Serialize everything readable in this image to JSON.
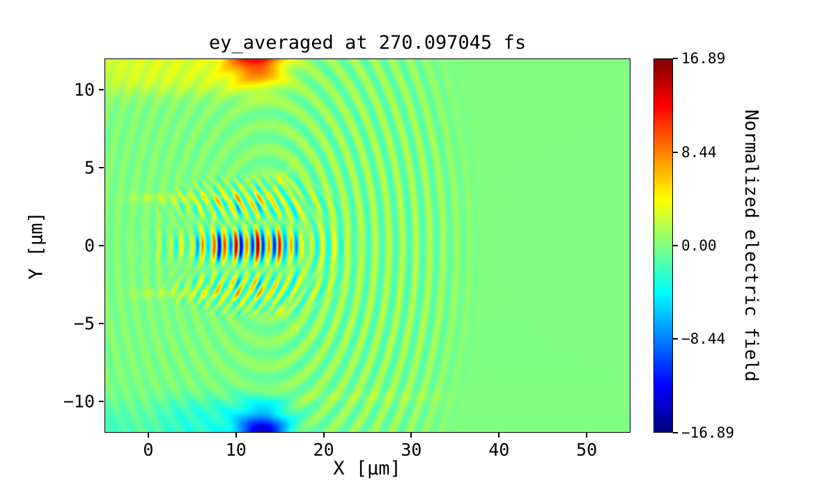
{
  "figure": {
    "background_color": "#ffffff",
    "zero_field_color": "#80ff80"
  },
  "chart_data": {
    "type": "heatmap",
    "title": "ey_averaged at 270.097045 fs",
    "xlabel": "X [μm]",
    "ylabel": "Y [μm]",
    "colorbar_label": "Normalized electric field",
    "colormap": "jet",
    "x_range": [
      -5,
      55
    ],
    "y_range": [
      -12,
      12
    ],
    "clim": [
      -16.89,
      16.89
    ],
    "x_ticks": {
      "values": [
        0,
        10,
        20,
        30,
        40,
        50
      ],
      "labels": [
        "0",
        "10",
        "20",
        "30",
        "40",
        "50"
      ]
    },
    "y_ticks": {
      "values": [
        -10,
        -5,
        0,
        5,
        10
      ],
      "labels": [
        "−10",
        "−5",
        "0",
        "5",
        "10"
      ]
    },
    "colorbar_ticks": {
      "values": [
        16.89,
        8.44,
        0,
        -8.44,
        -16.89
      ],
      "labels": [
        "16.89",
        "8.44",
        "0.00",
        "−8.44",
        "−16.89"
      ]
    },
    "features_description": [
      "uniform green background = zero normalized field",
      "strong alternating red/blue laser-pulse oscillations along y=0 between x=4 and x=22 um",
      "faint concentric cyan/yellow wakefield arcs centered near x=13.5, y=0, out to radius ~22 um",
      "yellow-green plasma-boundary band at top (y>10) with orange/red hotspot near x=12, y=12",
      "cyan plasma-boundary band at bottom (y<-10) with deep blue hotspot near x=13, y=-12",
      "thin yellow channel boundary lines near y=+3 and y=-3 for x<14 with outward flares"
    ],
    "field": {
      "clim": [
        -16.89,
        16.89
      ],
      "x_range": [
        -5,
        55
      ],
      "y_range": [
        -12,
        12
      ],
      "pulse": {
        "amp": 17,
        "x0": 11.5,
        "sx": 5.0,
        "sy": 1.5,
        "wavelength": 1.25,
        "curvature": 0.18,
        "beat_period": 4.5,
        "beat_center": 8,
        "beat_min": 0.5,
        "y_flip": 0.45
      },
      "arcs": {
        "amp": 2.6,
        "cx": 13.5,
        "cy": 0,
        "wavelength": 1.55,
        "r_in": 2.5,
        "r_out": 21.8,
        "edge": 1.2,
        "back_frac": 0.35
      },
      "top_region": {
        "base_amp": 3.0,
        "x_in": -6,
        "x_out": 15.5,
        "x_soft": 1.2,
        "y_edge": 9.9,
        "y_soft": 0.35,
        "hot_amp": 12,
        "hot_x": 12.3,
        "hot_sx": 2.2,
        "hot_y": 12.6,
        "hot_sy": 1.3
      },
      "bottom_region": {
        "base_amp": -3.0,
        "x_in": 1.0,
        "x_out": 16.0,
        "x_soft": 1.2,
        "y_edge": -9.9,
        "y_soft": 0.35,
        "hot_amp": -13,
        "hot_x": 13.0,
        "hot_sx": 2.0,
        "hot_y": -12.6,
        "hot_sy": 1.3,
        "corner": {
          "amp": -2.2,
          "x0": -4.2,
          "sx": 2.4,
          "y_edge": -10.4,
          "y_soft": 0.6
        }
      },
      "channel_lines": [
        {
          "y": 3.05,
          "amp": 1.7,
          "x_start": -2.0,
          "x_end": 13.5,
          "sigma": 0.22
        },
        {
          "y": -3.05,
          "amp": 1.5,
          "x_start": -2.0,
          "x_end": 13.5,
          "sigma": 0.22
        },
        {
          "y": -9.7,
          "amp": 0.8,
          "x_start": 15.0,
          "x_end": 34.0,
          "sigma": 0.25
        }
      ],
      "flares": [
        {
          "x_start": 13.5,
          "x_end": 16.5,
          "y0": 3.05,
          "slope": 0.7,
          "amp": 1.5,
          "sigma": 0.3
        },
        {
          "x_start": 13.5,
          "x_end": 16.5,
          "y0": -3.05,
          "slope": -0.7,
          "amp": 1.5,
          "sigma": 0.3
        },
        {
          "x_start": 15.0,
          "x_end": 15.6,
          "y0": 5.0,
          "slope": 8.0,
          "amp": 1.0,
          "sigma": 0.45
        }
      ],
      "noise": {
        "amp": 0.85,
        "cx": 6,
        "cy": 0,
        "rx": 9,
        "ry": 5.5,
        "f1": 5.3,
        "f2": 4.1,
        "f3": 2.3
      }
    }
  }
}
